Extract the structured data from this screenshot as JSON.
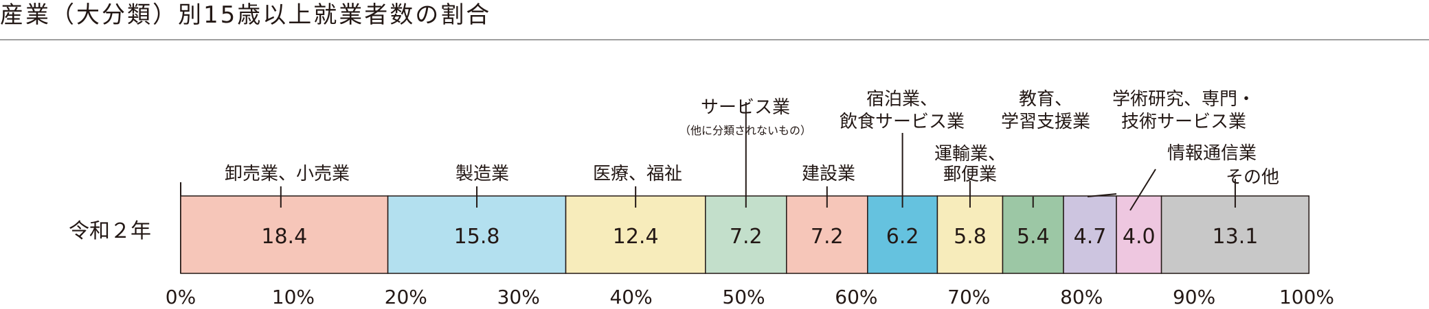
{
  "title": "産業（大分類）別15歳以上就業者数の割合",
  "chart_data": {
    "type": "bar",
    "orientation": "horizontal-stacked-100",
    "title": "産業（大分類）別15歳以上就業者数の割合",
    "row_label": "令和２年",
    "xlim": [
      0,
      100
    ],
    "x_ticks": [
      "0%",
      "10%",
      "20%",
      "30%",
      "40%",
      "50%",
      "60%",
      "70%",
      "80%",
      "90%",
      "100%"
    ],
    "grid": false,
    "segments": [
      {
        "label": [
          "卸売業、小売業"
        ],
        "value": 18.4,
        "display": "18.4",
        "color": "#f6c6b9"
      },
      {
        "label": [
          "製造業"
        ],
        "value": 15.8,
        "display": "15.8",
        "color": "#b3e0ef"
      },
      {
        "label": [
          "医療、福祉"
        ],
        "value": 12.4,
        "display": "12.4",
        "color": "#f7ecbb"
      },
      {
        "label": [
          "サービス業"
        ],
        "sublabel": "（他に分類されないもの）",
        "value": 7.2,
        "display": "7.2",
        "color": "#c3dfcb"
      },
      {
        "label": [
          "建設業"
        ],
        "value": 7.2,
        "display": "7.2",
        "color": "#f6c6b9"
      },
      {
        "label": [
          "宿泊業、",
          "飲食サービス業"
        ],
        "value": 6.2,
        "display": "6.2",
        "color": "#65c2df"
      },
      {
        "label": [
          "運輸業、",
          "郵便業"
        ],
        "value": 5.8,
        "display": "5.8",
        "color": "#f7ecbb"
      },
      {
        "label": [
          "教育、",
          "学習支援業"
        ],
        "value": 5.4,
        "display": "5.4",
        "color": "#9cc7a5"
      },
      {
        "label": [
          "学術研究、専門・",
          "技術サービス業"
        ],
        "value": 4.7,
        "display": "4.7",
        "color": "#cdc5e0"
      },
      {
        "label": [
          "情報通信業"
        ],
        "value": 4.0,
        "display": "4.0",
        "color": "#eec7e0"
      },
      {
        "label": [
          "その他"
        ],
        "value": 13.1,
        "display": "13.1",
        "color": "#c8c8c8"
      }
    ]
  }
}
